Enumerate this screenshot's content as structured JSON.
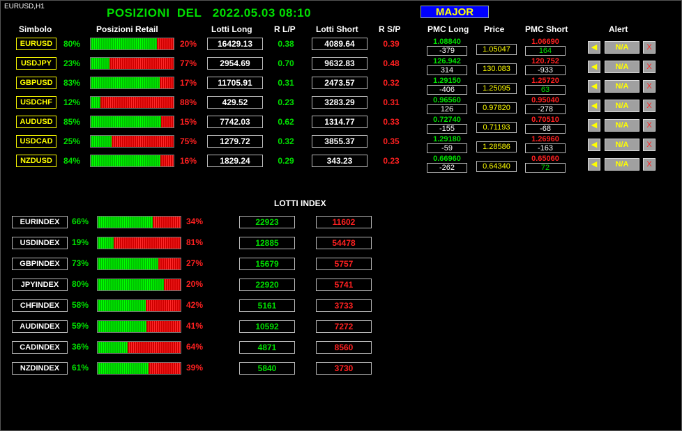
{
  "window": {
    "title": "EURUSD,H1"
  },
  "header": {
    "title": "POSIZIONI  DEL   2022.05.03 08:10",
    "major_label": "MAJOR"
  },
  "columns": {
    "symbol": "Simbolo",
    "retail": "Posizioni Retail",
    "lots_long": "Lotti Long",
    "r_lp": "R L/P",
    "lots_short": "Lotti Short",
    "r_sp": "R S/P",
    "pmc_long": "PMC Long",
    "price": "Price",
    "pmc_short": "PMC Short",
    "alert": "Alert"
  },
  "pairs": [
    {
      "symbol": "EURUSD",
      "long_pct": "80%",
      "long_fraction": 0.8,
      "short_pct": "20%",
      "lots_long": "16429.13",
      "r_lp": "0.38",
      "lots_short": "4089.64",
      "r_sp": "0.39",
      "pmc_long": "1.08840",
      "pmc_long_diff": "-379",
      "price": "1.05047",
      "pmc_short": "1.06690",
      "pmc_short_diff": "164",
      "alert": "N/A"
    },
    {
      "symbol": "USDJPY",
      "long_pct": "23%",
      "long_fraction": 0.23,
      "short_pct": "77%",
      "lots_long": "2954.69",
      "r_lp": "0.70",
      "lots_short": "9632.83",
      "r_sp": "0.48",
      "pmc_long": "126.942",
      "pmc_long_diff": "314",
      "price": "130.083",
      "pmc_short": "120.752",
      "pmc_short_diff": "-933",
      "alert": "N/A"
    },
    {
      "symbol": "GBPUSD",
      "long_pct": "83%",
      "long_fraction": 0.83,
      "short_pct": "17%",
      "lots_long": "11705.91",
      "r_lp": "0.31",
      "lots_short": "2473.57",
      "r_sp": "0.32",
      "pmc_long": "1.29150",
      "pmc_long_diff": "-406",
      "price": "1.25095",
      "pmc_short": "1.25720",
      "pmc_short_diff": "63",
      "alert": "N/A"
    },
    {
      "symbol": "USDCHF",
      "long_pct": "12%",
      "long_fraction": 0.12,
      "short_pct": "88%",
      "lots_long": "429.52",
      "r_lp": "0.23",
      "lots_short": "3283.29",
      "r_sp": "0.31",
      "pmc_long": "0.96560",
      "pmc_long_diff": "126",
      "price": "0.97820",
      "pmc_short": "0.95040",
      "pmc_short_diff": "-278",
      "alert": "N/A"
    },
    {
      "symbol": "AUDUSD",
      "long_pct": "85%",
      "long_fraction": 0.85,
      "short_pct": "15%",
      "lots_long": "7742.03",
      "r_lp": "0.62",
      "lots_short": "1314.77",
      "r_sp": "0.33",
      "pmc_long": "0.72740",
      "pmc_long_diff": "-155",
      "price": "0.71193",
      "pmc_short": "0.70510",
      "pmc_short_diff": "-68",
      "alert": "N/A"
    },
    {
      "symbol": "USDCAD",
      "long_pct": "25%",
      "long_fraction": 0.25,
      "short_pct": "75%",
      "lots_long": "1279.72",
      "r_lp": "0.32",
      "lots_short": "3855.37",
      "r_sp": "0.35",
      "pmc_long": "1.29180",
      "pmc_long_diff": "-59",
      "price": "1.28586",
      "pmc_short": "1.26960",
      "pmc_short_diff": "-163",
      "alert": "N/A"
    },
    {
      "symbol": "NZDUSD",
      "long_pct": "84%",
      "long_fraction": 0.84,
      "short_pct": "16%",
      "lots_long": "1829.24",
      "r_lp": "0.29",
      "lots_short": "343.23",
      "r_sp": "0.23",
      "pmc_long": "0.66960",
      "pmc_long_diff": "-262",
      "price": "0.64340",
      "pmc_short": "0.65060",
      "pmc_short_diff": "72",
      "alert": "N/A"
    }
  ],
  "index_section": {
    "title": "LOTTI INDEX"
  },
  "indexes": [
    {
      "name": "EURINDEX",
      "long_pct": "66%",
      "long_fraction": 0.66,
      "short_pct": "34%",
      "lots_long": "22923",
      "lots_short": "11602"
    },
    {
      "name": "USDINDEX",
      "long_pct": "19%",
      "long_fraction": 0.19,
      "short_pct": "81%",
      "lots_long": "12885",
      "lots_short": "54478"
    },
    {
      "name": "GBPINDEX",
      "long_pct": "73%",
      "long_fraction": 0.73,
      "short_pct": "27%",
      "lots_long": "15679",
      "lots_short": "5757"
    },
    {
      "name": "JPYINDEX",
      "long_pct": "80%",
      "long_fraction": 0.8,
      "short_pct": "20%",
      "lots_long": "22920",
      "lots_short": "5741"
    },
    {
      "name": "CHFINDEX",
      "long_pct": "58%",
      "long_fraction": 0.58,
      "short_pct": "42%",
      "lots_long": "5161",
      "lots_short": "3733"
    },
    {
      "name": "AUDINDEX",
      "long_pct": "59%",
      "long_fraction": 0.59,
      "short_pct": "41%",
      "lots_long": "10592",
      "lots_short": "7272"
    },
    {
      "name": "CADINDEX",
      "long_pct": "36%",
      "long_fraction": 0.36,
      "short_pct": "64%",
      "lots_long": "4871",
      "lots_short": "8560"
    },
    {
      "name": "NZDINDEX",
      "long_pct": "61%",
      "long_fraction": 0.61,
      "short_pct": "39%",
      "lots_long": "5840",
      "lots_short": "3730"
    }
  ],
  "colors": {
    "long": "#00e000",
    "short": "#ff2020",
    "symbol": "#ffff00",
    "major_bg": "#0000ff"
  },
  "icons": {
    "alert_bell": "bell-icon",
    "remove": "close-icon"
  }
}
